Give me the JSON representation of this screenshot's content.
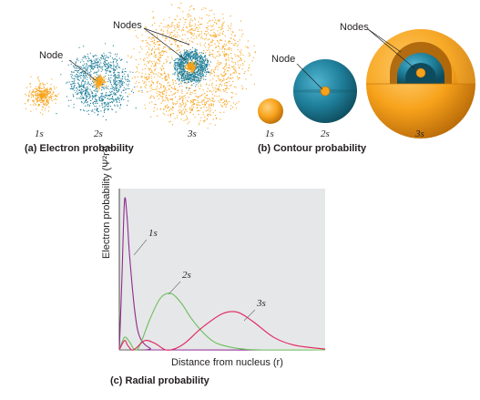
{
  "panel_a": {
    "caption": "(a) Electron probability",
    "orbital_labels": [
      "1s",
      "2s",
      "3s"
    ],
    "node_label": "Node",
    "nodes_label": "Nodes"
  },
  "panel_b": {
    "caption": "(b) Contour probability",
    "orbital_labels": [
      "1s",
      "2s",
      "3s"
    ],
    "node_label": "Node",
    "nodes_label": "Nodes"
  },
  "panel_c": {
    "caption": "(c) Radial probability"
  },
  "colors": {
    "orange": "#f7a21b",
    "orange_dark": "#d8850f",
    "teal": "#1f7f9a",
    "teal_dark": "#145f75",
    "curve_1s": "#8b2c8f",
    "curve_2s": "#6cbf5e",
    "curve_3s": "#e0245e",
    "plot_bg": "#e6e7e8"
  },
  "chart_data": {
    "type": "line",
    "xlabel": "Distance from nucleus (r)",
    "ylabel": "Electron probability (Ψ²r²)",
    "series": [
      {
        "name": "1s",
        "x": [
          0,
          0.25,
          0.5,
          0.75,
          1.0,
          1.5,
          2.0,
          3.0,
          4.0,
          20
        ],
        "y": [
          0,
          0.45,
          0.95,
          0.85,
          0.6,
          0.25,
          0.08,
          0.01,
          0,
          0
        ]
      },
      {
        "name": "2s",
        "x": [
          0,
          0.5,
          1.0,
          1.5,
          2.0,
          3.0,
          4.0,
          5.0,
          6.0,
          7.0,
          8.0,
          9.0,
          10.0,
          12.0,
          14.0,
          20
        ],
        "y": [
          0,
          0.08,
          0.05,
          0.0,
          0.03,
          0.2,
          0.33,
          0.36,
          0.3,
          0.2,
          0.12,
          0.06,
          0.03,
          0.005,
          0,
          0
        ]
      },
      {
        "name": "3s",
        "x": [
          0,
          0.5,
          0.8,
          1.2,
          1.6,
          2.5,
          3.5,
          4.5,
          5.5,
          6.5,
          8,
          10,
          11.5,
          13,
          15,
          17,
          20
        ],
        "y": [
          0,
          0.06,
          0.03,
          0.0,
          0.01,
          0.06,
          0.04,
          0.0,
          0.01,
          0.05,
          0.14,
          0.23,
          0.24,
          0.18,
          0.08,
          0.03,
          0.005
        ]
      }
    ]
  }
}
